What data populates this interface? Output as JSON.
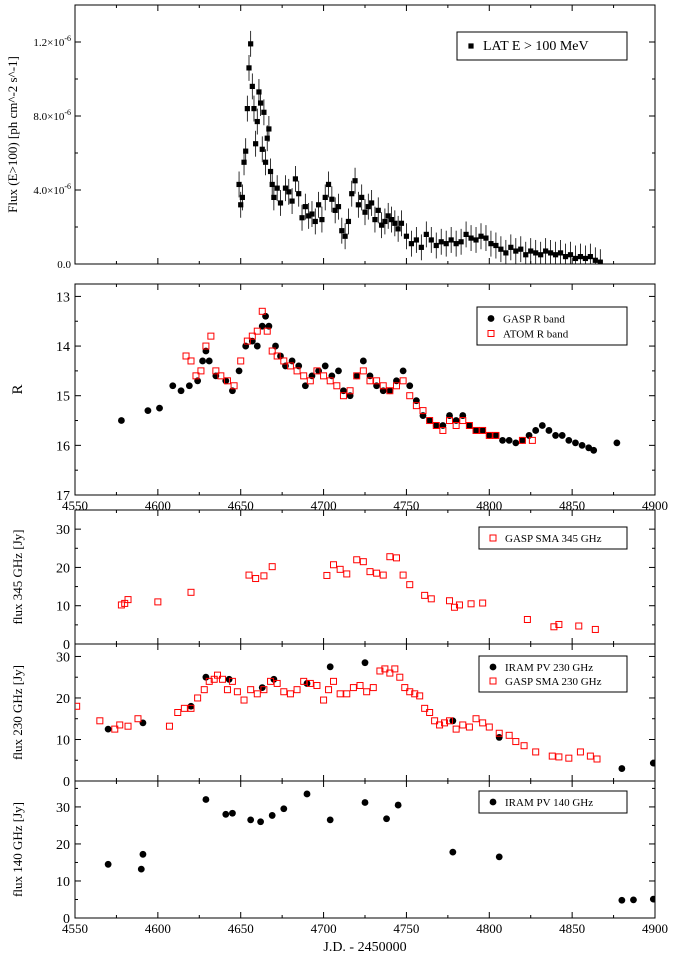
{
  "chart_data": [
    {
      "id": "lat",
      "type": "scatter",
      "xlim": [
        4550,
        4900
      ],
      "ylim": [
        0,
        1.4e-05
      ],
      "xticks": [
        4550,
        4600,
        4650,
        4700,
        4750,
        4800,
        4850,
        4900
      ],
      "yticks": [
        0,
        4e-06,
        8e-06,
        1.2e-05
      ],
      "ytick_labels": [
        "0.0",
        "4.0×10",
        "8.0×10",
        "1.2×10"
      ],
      "ytick_exponent": "-6",
      "ylabel": "Flux (E>100) [ph cm^-2 s^-1]",
      "legend_position": "top-right",
      "series": [
        {
          "name": "LAT E > 100 MeV",
          "marker": "filled-square",
          "color": "#000000",
          "x": [
            4649,
            4650,
            4651,
            4652,
            4653,
            4654,
            4655,
            4656,
            4657,
            4658,
            4659,
            4660,
            4661,
            4662,
            4663,
            4664,
            4665,
            4666,
            4667,
            4668,
            4669,
            4670,
            4672,
            4674,
            4677,
            4679,
            4681,
            4683,
            4685,
            4687,
            4689,
            4691,
            4693,
            4695,
            4697,
            4699,
            4701,
            4703,
            4705,
            4707,
            4709,
            4711,
            4713,
            4715,
            4717,
            4719,
            4721,
            4723,
            4725,
            4727,
            4729,
            4731,
            4733,
            4735,
            4737,
            4739,
            4741,
            4743,
            4745,
            4747,
            4750,
            4753,
            4756,
            4759,
            4762,
            4765,
            4768,
            4771,
            4774,
            4777,
            4780,
            4783,
            4786,
            4789,
            4792,
            4795,
            4798,
            4801,
            4804,
            4807,
            4810,
            4813,
            4816,
            4819,
            4822,
            4825,
            4828,
            4831,
            4834,
            4837,
            4840,
            4843,
            4846,
            4849,
            4852,
            4855,
            4858,
            4861,
            4864,
            4867
          ],
          "y": [
            4.3e-06,
            3.2e-06,
            3.6e-06,
            5.5e-06,
            6.1e-06,
            8.4e-06,
            1.06e-05,
            1.19e-05,
            9.6e-06,
            8.4e-06,
            6.5e-06,
            7.7e-06,
            9.3e-06,
            8.7e-06,
            6.2e-06,
            8.2e-06,
            5.5e-06,
            6.8e-06,
            7.3e-06,
            5e-06,
            4.3e-06,
            3.6e-06,
            4.1e-06,
            3.3e-06,
            4.1e-06,
            3.9e-06,
            3.4e-06,
            4.6e-06,
            3.8e-06,
            2.5e-06,
            3.1e-06,
            2.6e-06,
            2.7e-06,
            2.3e-06,
            3.2e-06,
            2.4e-06,
            3.6e-06,
            4.3e-06,
            3.5e-06,
            2.9e-06,
            3.1e-06,
            1.8e-06,
            1.5e-06,
            2.3e-06,
            3.8e-06,
            4.5e-06,
            3.2e-06,
            3.6e-06,
            2.8e-06,
            3.1e-06,
            3.3e-06,
            2.4e-06,
            2.9e-06,
            2.1e-06,
            2.3e-06,
            2.6e-06,
            2.4e-06,
            2.2e-06,
            1.9e-06,
            2.2e-06,
            1.5e-06,
            1.1e-06,
            1.3e-06,
            9e-07,
            1.6e-06,
            1.3e-06,
            1e-06,
            1.2e-06,
            1.1e-06,
            1.3e-06,
            1.1e-06,
            1.2e-06,
            1.6e-06,
            1.4e-06,
            1.3e-06,
            1.5e-06,
            1.4e-06,
            1.1e-06,
            1e-06,
            8e-07,
            6e-07,
            9e-07,
            7e-07,
            8e-07,
            5e-07,
            7e-07,
            6e-07,
            5e-07,
            7e-07,
            6e-07,
            5e-07,
            6e-07,
            4e-07,
            5e-07,
            3e-07,
            4e-07,
            3e-07,
            4e-07,
            2e-07,
            1e-07
          ],
          "err": 7e-07
        }
      ]
    },
    {
      "id": "optical",
      "type": "scatter",
      "xlim": [
        4550,
        4900
      ],
      "ylim": [
        17,
        12.75
      ],
      "xticks": [
        4550,
        4600,
        4650,
        4700,
        4750,
        4800,
        4850,
        4900
      ],
      "xtick_labels": [
        "4550",
        "4600",
        "4650",
        "4700",
        "4750",
        "4800",
        "4850",
        "4900"
      ],
      "yticks": [
        17,
        16,
        15,
        14,
        13
      ],
      "ylabel": "R",
      "legend_position": "top-right",
      "series": [
        {
          "name": "GASP R band",
          "marker": "filled-circle",
          "color": "#000000",
          "x": [
            4578,
            4594,
            4601,
            4609,
            4614,
            4619,
            4624,
            4627,
            4629,
            4631,
            4635,
            4641,
            4645,
            4649,
            4653,
            4657,
            4660,
            4663,
            4665,
            4667,
            4671,
            4674,
            4677,
            4681,
            4685,
            4689,
            4693,
            4697,
            4701,
            4705,
            4709,
            4712,
            4716,
            4720,
            4724,
            4728,
            4732,
            4736,
            4740,
            4744,
            4748,
            4752,
            4756,
            4760,
            4764,
            4768,
            4772,
            4776,
            4780,
            4784,
            4788,
            4792,
            4796,
            4800,
            4804,
            4808,
            4812,
            4816,
            4820,
            4824,
            4828,
            4832,
            4836,
            4840,
            4844,
            4848,
            4852,
            4856,
            4860,
            4863,
            4877
          ],
          "y": [
            15.5,
            15.3,
            15.25,
            14.8,
            14.9,
            14.8,
            14.7,
            14.3,
            14.1,
            14.3,
            14.6,
            14.7,
            14.9,
            14.5,
            14.0,
            13.9,
            14.0,
            13.6,
            13.4,
            13.6,
            14.0,
            14.2,
            14.4,
            14.3,
            14.4,
            14.8,
            14.6,
            14.5,
            14.4,
            14.6,
            14.5,
            14.9,
            15.0,
            14.6,
            14.3,
            14.6,
            14.8,
            14.9,
            14.9,
            14.7,
            14.5,
            14.8,
            15.1,
            15.4,
            15.5,
            15.6,
            15.6,
            15.4,
            15.5,
            15.4,
            15.6,
            15.7,
            15.7,
            15.8,
            15.8,
            15.9,
            15.9,
            15.95,
            15.9,
            15.8,
            15.7,
            15.6,
            15.7,
            15.8,
            15.8,
            15.9,
            15.95,
            16.0,
            16.05,
            16.1,
            15.95
          ]
        },
        {
          "name": "ATOM R band",
          "marker": "open-square",
          "color": "#ff0000",
          "x": [
            4617,
            4620,
            4623,
            4626,
            4629,
            4632,
            4635,
            4638,
            4642,
            4646,
            4650,
            4654,
            4657,
            4660,
            4663,
            4666,
            4669,
            4672,
            4676,
            4680,
            4684,
            4688,
            4692,
            4696,
            4700,
            4704,
            4708,
            4712,
            4716,
            4720,
            4724,
            4728,
            4732,
            4736,
            4740,
            4744,
            4748,
            4752,
            4756,
            4760,
            4764,
            4768,
            4772,
            4776,
            4780,
            4784,
            4788,
            4792,
            4796,
            4800,
            4804,
            4820,
            4826
          ],
          "y": [
            14.2,
            14.3,
            14.6,
            14.5,
            14.0,
            13.8,
            14.5,
            14.6,
            14.7,
            14.8,
            14.3,
            13.9,
            13.8,
            13.7,
            13.3,
            13.7,
            14.1,
            14.2,
            14.3,
            14.4,
            14.5,
            14.6,
            14.7,
            14.5,
            14.6,
            14.7,
            14.8,
            15.0,
            14.9,
            14.6,
            14.5,
            14.7,
            14.7,
            14.8,
            14.9,
            14.8,
            14.7,
            15.0,
            15.2,
            15.3,
            15.5,
            15.6,
            15.7,
            15.5,
            15.6,
            15.5,
            15.6,
            15.7,
            15.7,
            15.8,
            15.8,
            15.9,
            15.9
          ]
        }
      ]
    },
    {
      "id": "sma345",
      "type": "scatter",
      "xlim": [
        4550,
        4900
      ],
      "ylim": [
        0,
        35
      ],
      "xticks": [
        4550,
        4600,
        4650,
        4700,
        4750,
        4800,
        4850,
        4900
      ],
      "yticks": [
        0,
        10,
        20,
        30
      ],
      "ylabel": "flux 345 GHz [Jy]",
      "legend_position": "top-right",
      "series": [
        {
          "name": "GASP SMA 345 GHz",
          "marker": "open-square",
          "color": "#ff0000",
          "x": [
            4578,
            4580,
            4582,
            4600,
            4620,
            4655,
            4659,
            4664,
            4669,
            4702,
            4706,
            4710,
            4714,
            4720,
            4724,
            4728,
            4732,
            4736,
            4740,
            4744,
            4748,
            4752,
            4761,
            4765,
            4776,
            4779,
            4782,
            4789,
            4796,
            4823,
            4839,
            4842,
            4854,
            4864
          ],
          "y": [
            10.2,
            10.6,
            11.6,
            11.0,
            13.5,
            18.0,
            17.1,
            17.8,
            20.2,
            17.9,
            20.7,
            19.5,
            18.3,
            22.0,
            21.5,
            18.9,
            18.5,
            18.0,
            22.8,
            22.5,
            18.0,
            15.5,
            12.7,
            11.8,
            11.3,
            9.6,
            10.2,
            10.5,
            10.7,
            6.4,
            4.5,
            5.1,
            4.7,
            3.8
          ]
        }
      ]
    },
    {
      "id": "f230",
      "type": "scatter",
      "xlim": [
        4550,
        4900
      ],
      "ylim": [
        0,
        33
      ],
      "xticks": [
        4550,
        4600,
        4650,
        4700,
        4750,
        4800,
        4850,
        4900
      ],
      "yticks": [
        0,
        10,
        20,
        30
      ],
      "ylabel": "flux 230 GHz [Jy]",
      "legend_position": "top-right",
      "series": [
        {
          "name": "IRAM PV 230 GHz",
          "marker": "filled-circle",
          "color": "#000000",
          "x": [
            4570,
            4591,
            4620,
            4629,
            4643,
            4663,
            4670,
            4690,
            4704,
            4725,
            4778,
            4806,
            4880,
            4899
          ],
          "y": [
            12.5,
            14.0,
            18.0,
            25.0,
            24.5,
            22.5,
            24.5,
            23.5,
            27.5,
            28.5,
            14.5,
            10.5,
            3.0,
            4.3
          ]
        },
        {
          "name": "GASP SMA 230 GHz",
          "marker": "open-square",
          "color": "#ff0000",
          "x": [
            4551,
            4565,
            4574,
            4577,
            4582,
            4588,
            4607,
            4612,
            4616,
            4620,
            4624,
            4628,
            4631,
            4634,
            4636,
            4639,
            4642,
            4645,
            4648,
            4652,
            4656,
            4660,
            4664,
            4668,
            4672,
            4676,
            4680,
            4684,
            4688,
            4692,
            4696,
            4700,
            4703,
            4706,
            4710,
            4714,
            4718,
            4722,
            4726,
            4730,
            4734,
            4737,
            4740,
            4743,
            4746,
            4749,
            4752,
            4755,
            4758,
            4761,
            4764,
            4767,
            4770,
            4773,
            4776,
            4780,
            4784,
            4788,
            4792,
            4796,
            4800,
            4806,
            4812,
            4816,
            4821,
            4828,
            4838,
            4842,
            4848,
            4855,
            4861,
            4865
          ],
          "y": [
            18.0,
            14.5,
            12.5,
            13.5,
            13.2,
            15.0,
            13.2,
            16.5,
            17.5,
            17.5,
            20.0,
            22.0,
            24.0,
            24.5,
            25.5,
            24.5,
            22.0,
            24.0,
            21.5,
            19.5,
            22.0,
            21.0,
            22.0,
            24.0,
            23.5,
            21.5,
            21.0,
            22.0,
            24.0,
            23.5,
            23.0,
            19.5,
            22.0,
            24.0,
            21.0,
            21.0,
            22.5,
            23.0,
            21.5,
            22.5,
            26.5,
            27.0,
            26.0,
            27.0,
            25.0,
            22.5,
            21.5,
            21.0,
            20.5,
            17.5,
            16.5,
            14.5,
            13.5,
            14.0,
            14.5,
            12.5,
            13.5,
            13.0,
            15.0,
            14.0,
            13.0,
            11.5,
            11.0,
            9.5,
            8.5,
            7.0,
            6.0,
            5.8,
            5.5,
            7.0,
            6.0,
            5.3
          ]
        }
      ]
    },
    {
      "id": "f140",
      "type": "scatter",
      "xlim": [
        4550,
        4900
      ],
      "ylim": [
        0,
        37
      ],
      "xticks": [
        4550,
        4600,
        4650,
        4700,
        4750,
        4800,
        4850,
        4900
      ],
      "xtick_labels": [
        "4550",
        "4600",
        "4650",
        "4700",
        "4750",
        "4800",
        "4850",
        "4900"
      ],
      "yticks": [
        0,
        10,
        20,
        30
      ],
      "ylabel": "flux 140 GHz [Jy]",
      "xlabel": "J.D. - 2450000",
      "legend_position": "top-right",
      "series": [
        {
          "name": "IRAM PV 140 GHz",
          "marker": "filled-circle",
          "color": "#000000",
          "x": [
            4570,
            4590,
            4591,
            4629,
            4641,
            4645,
            4656,
            4662,
            4669,
            4676,
            4690,
            4704,
            4725,
            4738,
            4745,
            4778,
            4806,
            4880,
            4887,
            4899
          ],
          "y": [
            14.5,
            13.2,
            17.2,
            32.0,
            28.0,
            28.3,
            26.5,
            26.0,
            27.7,
            29.5,
            33.5,
            26.5,
            31.2,
            26.8,
            30.5,
            17.8,
            16.5,
            4.8,
            4.9,
            5.1
          ]
        }
      ]
    }
  ]
}
